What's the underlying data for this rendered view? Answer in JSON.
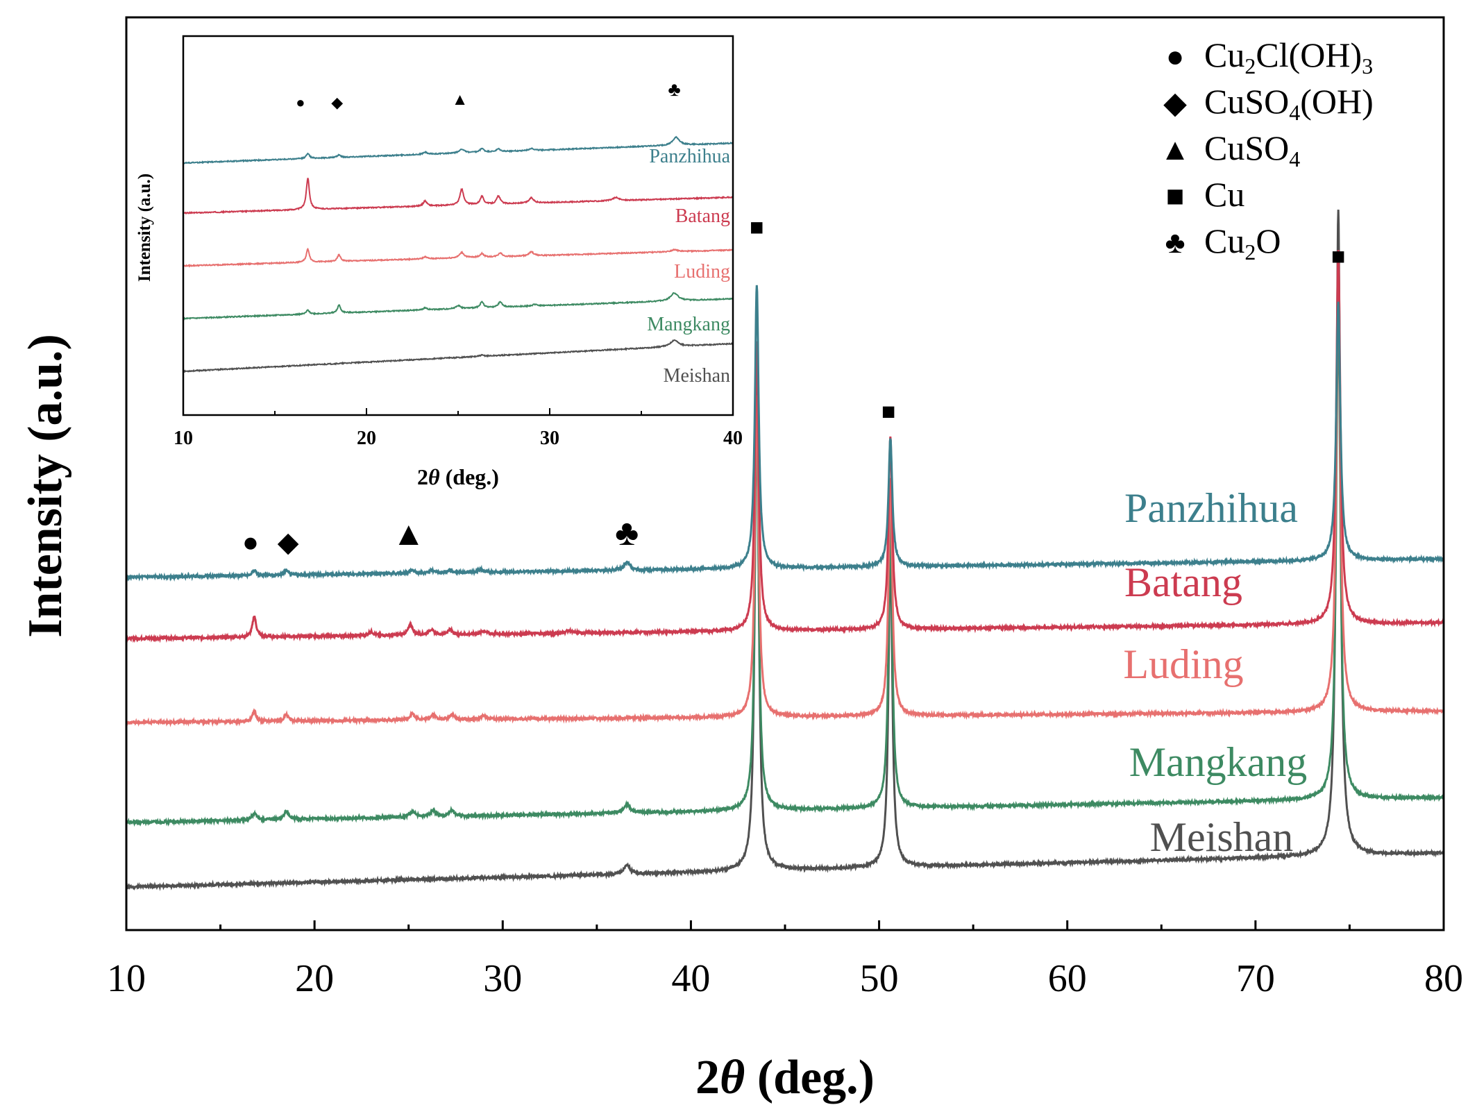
{
  "chart_data": {
    "type": "line",
    "title": "",
    "xlabel_prefix": "2",
    "xlabel_theta": "θ",
    "xlabel_suffix": " (deg.)",
    "ylabel": "Intensity (a.u.)",
    "xlim": [
      10,
      80
    ],
    "xticks": [
      10,
      20,
      30,
      40,
      50,
      60,
      70,
      80
    ],
    "y_ticks": false,
    "grid": false,
    "legend_position": "top-right",
    "series": [
      {
        "name": "Meishan",
        "color": "#505050",
        "baseline": 0.0,
        "slope": 0.00075,
        "peaks": [
          [
            36.6,
            0.015,
            0.18
          ],
          [
            43.5,
            0.78,
            0.12
          ],
          [
            50.6,
            0.5,
            0.12
          ],
          [
            74.4,
            1.0,
            0.13
          ]
        ]
      },
      {
        "name": "Mangkang",
        "color": "#3d8a62",
        "baseline": 0.1,
        "slope": 0.00055,
        "peaks": [
          [
            16.8,
            0.01,
            0.15
          ],
          [
            18.5,
            0.012,
            0.15
          ],
          [
            25.2,
            0.008,
            0.2
          ],
          [
            26.3,
            0.01,
            0.15
          ],
          [
            27.3,
            0.01,
            0.15
          ],
          [
            36.6,
            0.013,
            0.2
          ],
          [
            43.5,
            0.62,
            0.12
          ],
          [
            50.6,
            0.45,
            0.12
          ],
          [
            74.4,
            0.78,
            0.13
          ]
        ]
      },
      {
        "name": "Luding",
        "color": "#e7706f",
        "baseline": 0.255,
        "slope": 0.00025,
        "peaks": [
          [
            16.8,
            0.015,
            0.12
          ],
          [
            18.5,
            0.01,
            0.12
          ],
          [
            25.2,
            0.01,
            0.15
          ],
          [
            26.3,
            0.008,
            0.15
          ],
          [
            27.3,
            0.008,
            0.15
          ],
          [
            29.0,
            0.005,
            0.2
          ],
          [
            43.5,
            0.5,
            0.12
          ],
          [
            50.6,
            0.37,
            0.12
          ],
          [
            74.4,
            0.68,
            0.13
          ]
        ]
      },
      {
        "name": "Batang",
        "color": "#cc3b50",
        "baseline": 0.385,
        "slope": 0.00035,
        "peaks": [
          [
            16.8,
            0.032,
            0.12
          ],
          [
            23.0,
            0.006,
            0.15
          ],
          [
            25.1,
            0.016,
            0.15
          ],
          [
            26.2,
            0.008,
            0.15
          ],
          [
            27.2,
            0.008,
            0.15
          ],
          [
            29.0,
            0.005,
            0.2
          ],
          [
            33.5,
            0.004,
            0.2
          ],
          [
            43.5,
            0.45,
            0.12
          ],
          [
            50.6,
            0.3,
            0.12
          ],
          [
            74.4,
            0.58,
            0.13
          ]
        ]
      },
      {
        "name": "Panzhihua",
        "color": "#3c7f8c",
        "baseline": 0.48,
        "slope": 0.0004,
        "peaks": [
          [
            16.8,
            0.008,
            0.12
          ],
          [
            18.5,
            0.008,
            0.12
          ],
          [
            25.2,
            0.005,
            0.15
          ],
          [
            26.2,
            0.004,
            0.15
          ],
          [
            27.2,
            0.004,
            0.15
          ],
          [
            28.8,
            0.004,
            0.2
          ],
          [
            36.6,
            0.012,
            0.2
          ],
          [
            43.5,
            0.44,
            0.12
          ],
          [
            50.6,
            0.2,
            0.12
          ],
          [
            74.4,
            0.4,
            0.13
          ]
        ]
      }
    ],
    "markers": [
      {
        "symbol": "●",
        "x": 16.6,
        "level": 0.52,
        "size": 40
      },
      {
        "symbol": "◆",
        "x": 18.6,
        "level": 0.52,
        "size": 40
      },
      {
        "symbol": "▲",
        "x": 25.0,
        "level": 0.53,
        "size": 48
      },
      {
        "symbol": "♣",
        "x": 36.6,
        "level": 0.53,
        "size": 52
      },
      {
        "symbol": "■",
        "x": 43.5,
        "level": 1.01,
        "size": 34
      },
      {
        "symbol": "■",
        "x": 50.5,
        "level": 0.725,
        "size": 34
      },
      {
        "symbol": "■",
        "x": 74.4,
        "level": 0.965,
        "size": 34
      }
    ],
    "legend": [
      {
        "symbol": "●",
        "main": "Cu",
        "sub1": "2",
        "rest": "Cl(OH)",
        "sub2": "3"
      },
      {
        "symbol": "◆",
        "main": "CuSO",
        "sub1": "4",
        "rest": "(OH)",
        "sub2": ""
      },
      {
        "symbol": "▲",
        "main": "CuSO",
        "sub1": "4",
        "rest": "",
        "sub2": ""
      },
      {
        "symbol": "■",
        "main": "Cu",
        "sub1": "",
        "rest": "",
        "sub2": ""
      },
      {
        "symbol": "♣",
        "main": "Cu",
        "sub1": "2",
        "rest": "O",
        "sub2": ""
      }
    ],
    "inset": {
      "xlim": [
        10,
        40
      ],
      "xticks": [
        10,
        20,
        30,
        40
      ],
      "xlabel_prefix": "2",
      "xlabel_theta": "θ",
      "xlabel_suffix": " (deg.)",
      "ylabel": "Intensity (a.u.)",
      "series": [
        {
          "name": "Meishan",
          "color": "#505050",
          "baseline": 0.0,
          "slope": 0.0035,
          "peaks": [
            [
              26.3,
              0.004,
              0.15
            ],
            [
              36.8,
              0.025,
              0.25
            ]
          ]
        },
        {
          "name": "Mangkang",
          "color": "#3d8a62",
          "baseline": 0.2,
          "slope": 0.0025,
          "peaks": [
            [
              16.8,
              0.015,
              0.1
            ],
            [
              18.5,
              0.03,
              0.1
            ],
            [
              23.2,
              0.008,
              0.12
            ],
            [
              25.0,
              0.012,
              0.15
            ],
            [
              26.3,
              0.022,
              0.12
            ],
            [
              27.3,
              0.02,
              0.12
            ],
            [
              29.2,
              0.006,
              0.15
            ],
            [
              36.8,
              0.03,
              0.25
            ]
          ]
        },
        {
          "name": "Luding",
          "color": "#e7706f",
          "baseline": 0.4,
          "slope": 0.002,
          "peaks": [
            [
              16.8,
              0.05,
              0.1
            ],
            [
              18.5,
              0.025,
              0.1
            ],
            [
              23.2,
              0.008,
              0.12
            ],
            [
              25.2,
              0.02,
              0.15
            ],
            [
              26.3,
              0.014,
              0.12
            ],
            [
              27.3,
              0.015,
              0.12
            ],
            [
              29.0,
              0.015,
              0.15
            ],
            [
              36.8,
              0.008,
              0.2
            ]
          ]
        },
        {
          "name": "Batang",
          "color": "#cc3b50",
          "baseline": 0.6,
          "slope": 0.002,
          "peaks": [
            [
              16.8,
              0.12,
              0.1
            ],
            [
              23.2,
              0.02,
              0.12
            ],
            [
              25.2,
              0.06,
              0.12
            ],
            [
              26.3,
              0.03,
              0.12
            ],
            [
              27.2,
              0.03,
              0.12
            ],
            [
              29.0,
              0.02,
              0.15
            ],
            [
              33.6,
              0.012,
              0.2
            ]
          ]
        },
        {
          "name": "Panzhihua",
          "color": "#3c7f8c",
          "baseline": 0.79,
          "slope": 0.0025,
          "peaks": [
            [
              16.8,
              0.02,
              0.1
            ],
            [
              18.5,
              0.01,
              0.1
            ],
            [
              23.2,
              0.008,
              0.12
            ],
            [
              25.2,
              0.015,
              0.15
            ],
            [
              26.3,
              0.014,
              0.12
            ],
            [
              27.2,
              0.01,
              0.12
            ],
            [
              29.0,
              0.008,
              0.15
            ],
            [
              36.9,
              0.03,
              0.22
            ]
          ]
        }
      ],
      "markers": [
        {
          "symbol": "●",
          "x": 16.4,
          "level": 1.0,
          "size": 22
        },
        {
          "symbol": "◆",
          "x": 18.4,
          "level": 1.0,
          "size": 22
        },
        {
          "symbol": "▲",
          "x": 25.1,
          "level": 1.01,
          "size": 24
        },
        {
          "symbol": "♣",
          "x": 36.8,
          "level": 1.045,
          "size": 28
        }
      ]
    }
  }
}
